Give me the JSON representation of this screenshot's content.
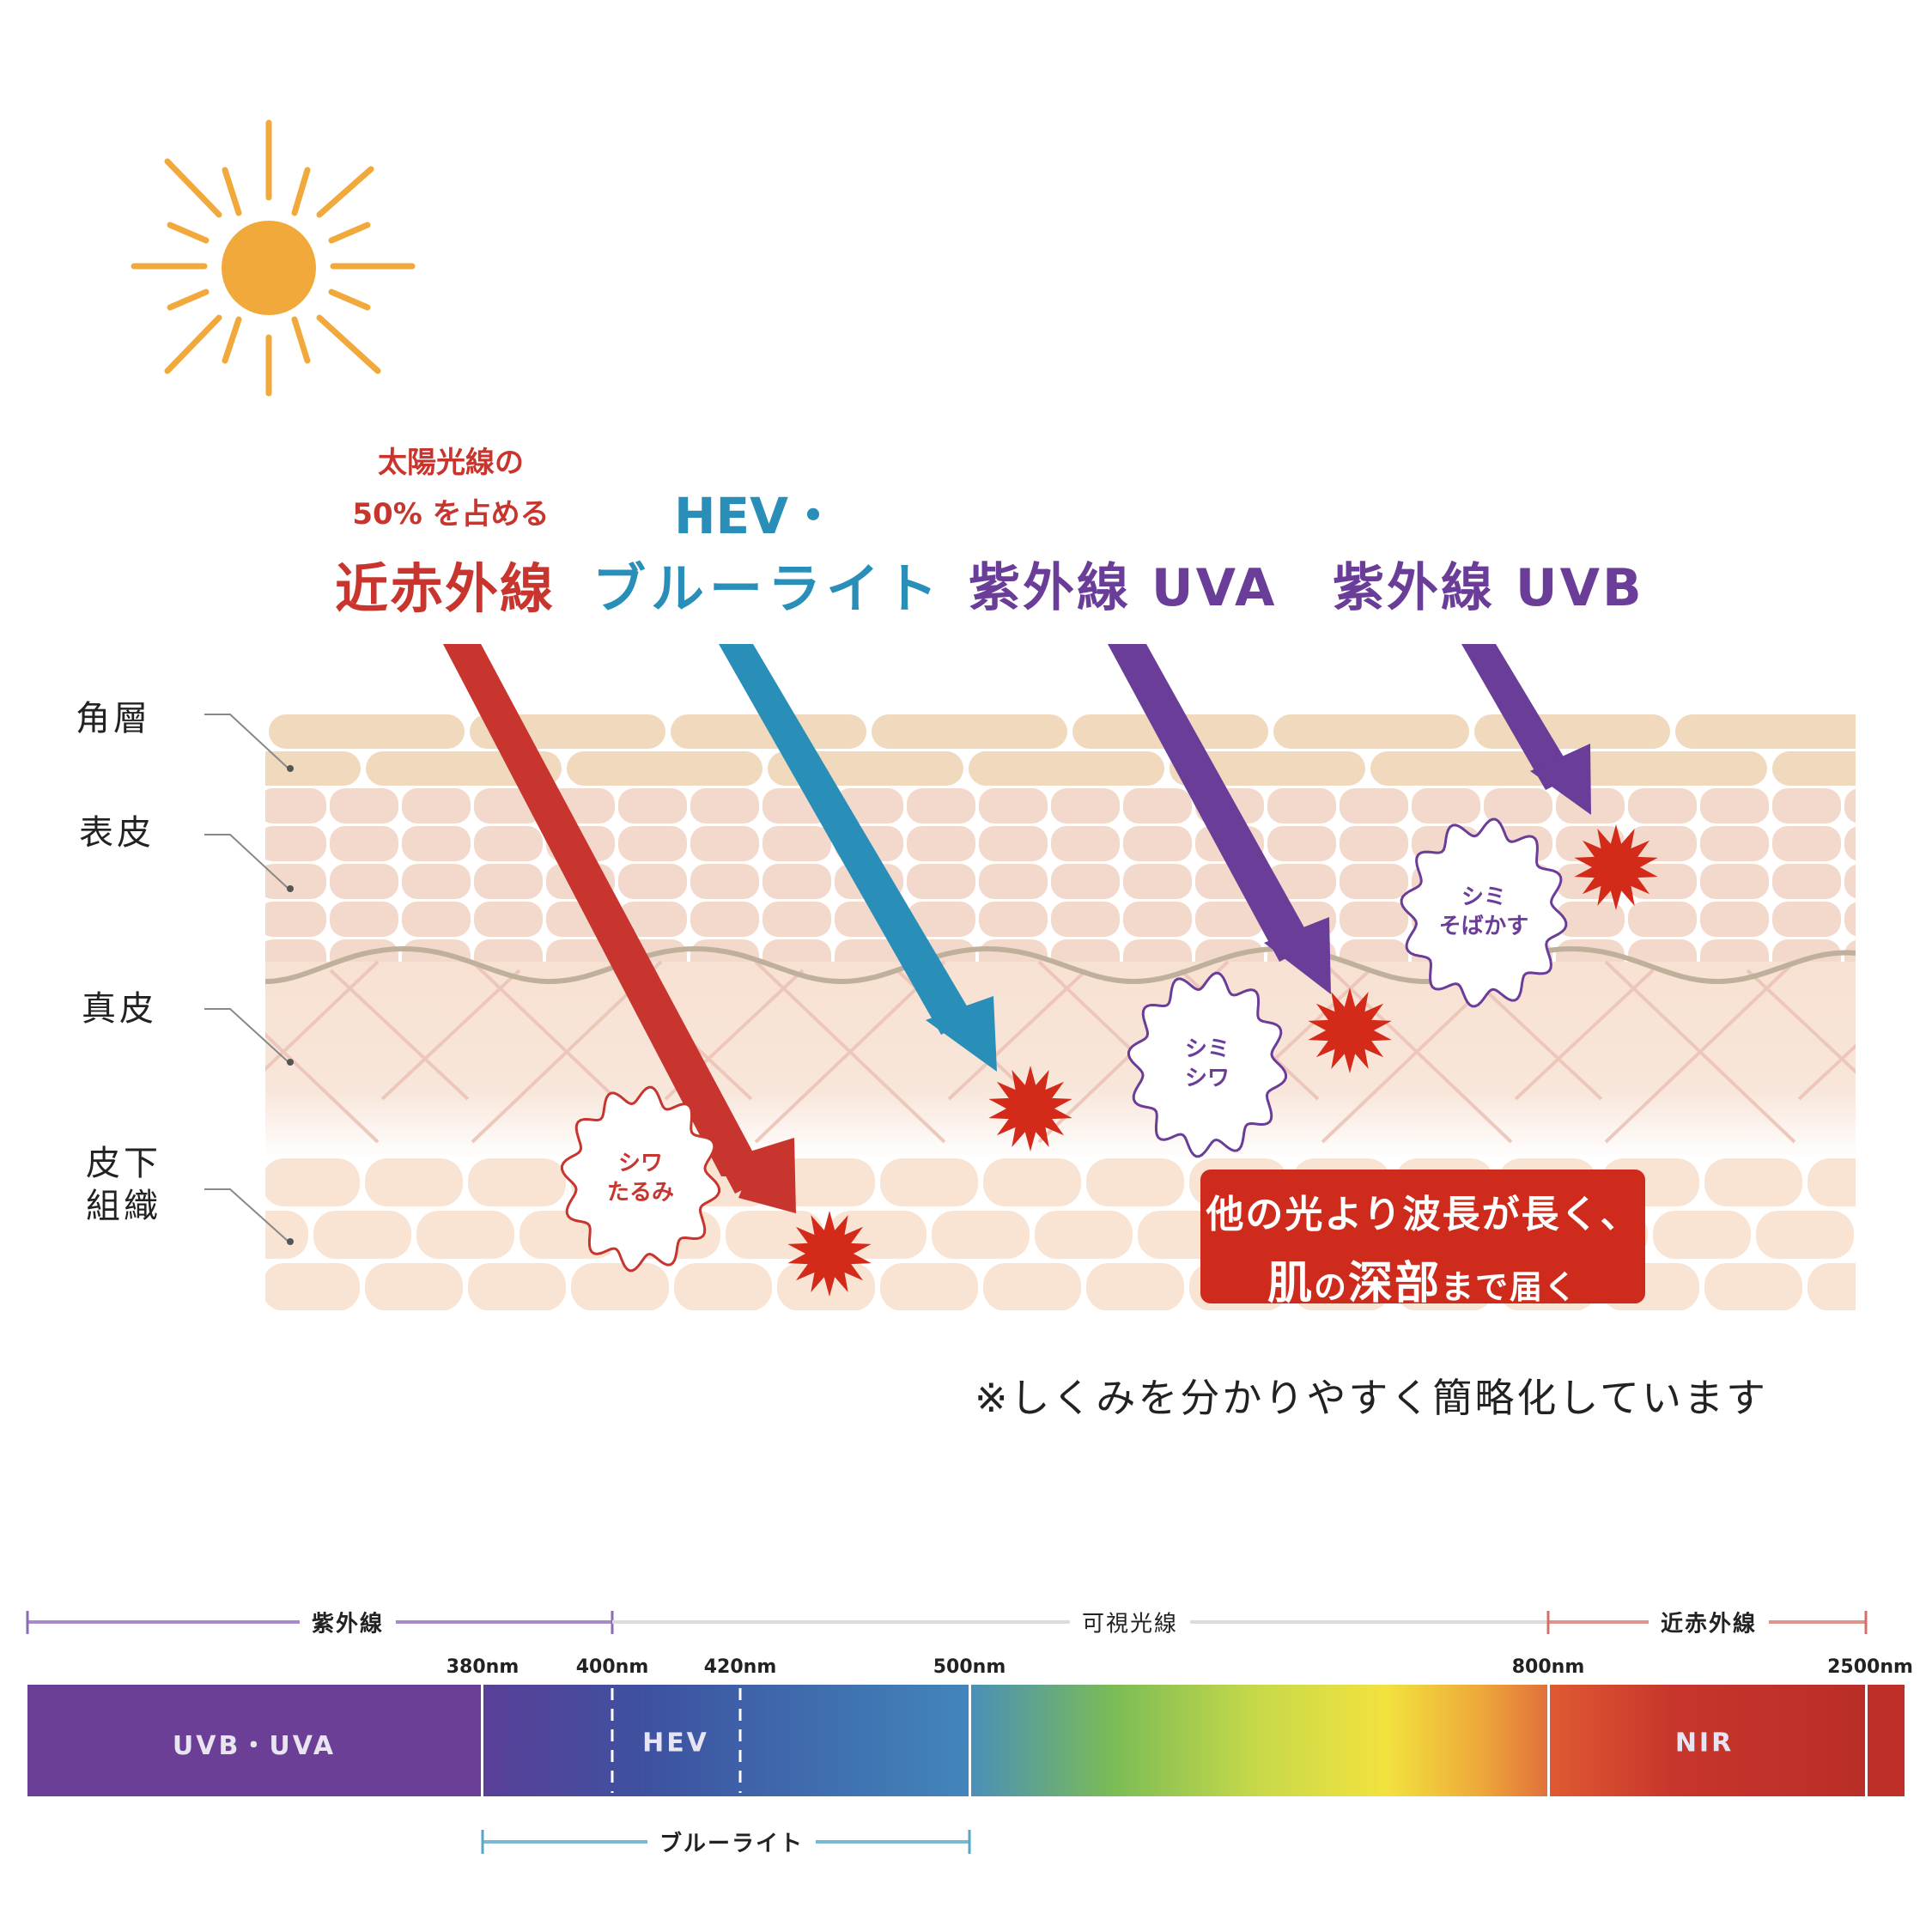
{
  "colors": {
    "sun": "#f2a93b",
    "nir": "#c8352e",
    "hev": "#2a8fb8",
    "uv": "#6a3d98",
    "damage_star": "#d42a1a",
    "stratum_corneum": "#f0d9bd",
    "epidermis": "#f3d9cb",
    "dermis": "#f7e1d2",
    "subcutaneous": "#f9e3d2",
    "collagen": "#ecc4b8",
    "basement_wave": "#bfb09c",
    "callout_bg": "#cf2b1c"
  },
  "rays": {
    "nir": {
      "sub_line1": "太陽光線の",
      "sub_line2": "50% を占める",
      "title": "近赤外線"
    },
    "hev": {
      "line1": "HEV・",
      "line2": "ブルーライト"
    },
    "uva": {
      "title": "紫外線 UVA"
    },
    "uvb": {
      "title": "紫外線 UVB"
    }
  },
  "skin_layers": [
    {
      "label": "角層"
    },
    {
      "label": "表皮"
    },
    {
      "label": "真皮"
    },
    {
      "label_line1": "皮下",
      "label_line2": "組織"
    }
  ],
  "effects": {
    "nir": {
      "line1": "シワ",
      "line2": "たるみ"
    },
    "uva": {
      "line1": "シミ",
      "line2": "シワ"
    },
    "uvb": {
      "line1": "シミ",
      "line2": "そばかす"
    }
  },
  "callout": {
    "line1": "他の光より波長が長く、",
    "line2_a": "肌",
    "line2_b": "の",
    "line2_c": "深部",
    "line2_d": "まで届く"
  },
  "footnote": "※しくみを分かりやすく簡略化しています",
  "spectrum": {
    "brackets": {
      "uv": "紫外線",
      "visible": "可視光線",
      "nir": "近赤外線",
      "bluelight": "ブルーライト"
    },
    "ticks": [
      "380nm",
      "400nm",
      "420nm",
      "500nm",
      "800nm",
      "2500nm"
    ],
    "bands": {
      "uvb_uva": "UVB・UVA",
      "hev": "HEV",
      "nir": "NIR"
    }
  }
}
